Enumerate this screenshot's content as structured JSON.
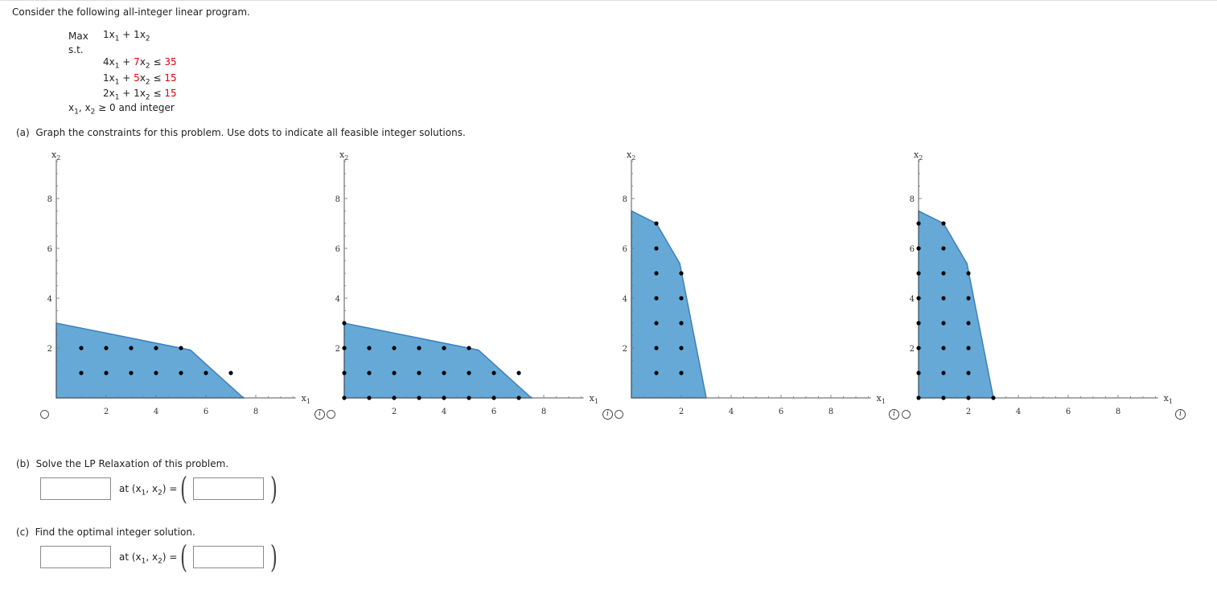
{
  "intro": "Consider the following all-integer linear program.",
  "model": {
    "max_label": "Max",
    "objective": {
      "c1": "1",
      "c2": "1"
    },
    "st_label": "s.t.",
    "constraints": [
      {
        "a1": "4",
        "a2": "7",
        "rel": "≤",
        "rhs": "35"
      },
      {
        "a1": "1",
        "a2": "5",
        "rel": "≤",
        "rhs": "15"
      },
      {
        "a1": "2",
        "a2": "1",
        "rel": "≤",
        "rhs": "15"
      }
    ],
    "nonneg": "≥ 0 and integer"
  },
  "part_a": {
    "label": "(a)",
    "text": "Graph the constraints for this problem. Use dots to indicate all feasible integer solutions."
  },
  "part_b": {
    "label": "(b)",
    "text": "Solve the LP Relaxation of this problem.",
    "objective_value": "",
    "point_value": "",
    "at_text": "at"
  },
  "part_c": {
    "label": "(c)",
    "text": "Find the optimal integer solution.",
    "objective_value": "",
    "point_value": "",
    "at_text": "at"
  },
  "info_glyph": "i",
  "chart_data": [
    {
      "type": "scatter",
      "xlabel": "x1",
      "ylabel": "x2",
      "xlim": [
        0,
        9.6
      ],
      "ylim": [
        0,
        9.6
      ],
      "x_ticks": [
        2,
        4,
        6,
        8
      ],
      "y_ticks": [
        2,
        4,
        6,
        8
      ],
      "region": [
        [
          0,
          0
        ],
        [
          0,
          3
        ],
        [
          5.38,
          1.92
        ],
        [
          7.5,
          0
        ]
      ],
      "points": [
        [
          1,
          2
        ],
        [
          2,
          2
        ],
        [
          3,
          2
        ],
        [
          4,
          2
        ],
        [
          5,
          2
        ],
        [
          1,
          1
        ],
        [
          2,
          1
        ],
        [
          3,
          1
        ],
        [
          4,
          1
        ],
        [
          5,
          1
        ],
        [
          6,
          1
        ],
        [
          7,
          1
        ]
      ]
    },
    {
      "type": "scatter",
      "xlabel": "x1",
      "ylabel": "x2",
      "xlim": [
        0,
        9.6
      ],
      "ylim": [
        0,
        9.6
      ],
      "x_ticks": [
        2,
        4,
        6,
        8
      ],
      "y_ticks": [
        2,
        4,
        6,
        8
      ],
      "region": [
        [
          0,
          0
        ],
        [
          0,
          3
        ],
        [
          5.38,
          1.92
        ],
        [
          7.5,
          0
        ]
      ],
      "points": [
        [
          0,
          3
        ],
        [
          0,
          2
        ],
        [
          1,
          2
        ],
        [
          2,
          2
        ],
        [
          3,
          2
        ],
        [
          4,
          2
        ],
        [
          5,
          2
        ],
        [
          0,
          1
        ],
        [
          1,
          1
        ],
        [
          2,
          1
        ],
        [
          3,
          1
        ],
        [
          4,
          1
        ],
        [
          5,
          1
        ],
        [
          6,
          1
        ],
        [
          7,
          1
        ],
        [
          0,
          0
        ],
        [
          1,
          0
        ],
        [
          2,
          0
        ],
        [
          3,
          0
        ],
        [
          4,
          0
        ],
        [
          5,
          0
        ],
        [
          6,
          0
        ],
        [
          7,
          0
        ]
      ]
    },
    {
      "type": "scatter",
      "xlabel": "x1",
      "ylabel": "x2",
      "xlim": [
        0,
        9.6
      ],
      "ylim": [
        0,
        9.6
      ],
      "x_ticks": [
        2,
        4,
        6,
        8
      ],
      "y_ticks": [
        2,
        4,
        6,
        8
      ],
      "region": [
        [
          0,
          0
        ],
        [
          0,
          7.5
        ],
        [
          1,
          7
        ],
        [
          1.94,
          5.39
        ],
        [
          3,
          0
        ]
      ],
      "points": [
        [
          1,
          7
        ],
        [
          1,
          6
        ],
        [
          1,
          5
        ],
        [
          2,
          5
        ],
        [
          1,
          4
        ],
        [
          2,
          4
        ],
        [
          1,
          3
        ],
        [
          2,
          3
        ],
        [
          1,
          2
        ],
        [
          2,
          2
        ],
        [
          1,
          1
        ],
        [
          2,
          1
        ]
      ]
    },
    {
      "type": "scatter",
      "xlabel": "x1",
      "ylabel": "x2",
      "xlim": [
        0,
        9.6
      ],
      "ylim": [
        0,
        9.6
      ],
      "x_ticks": [
        2,
        4,
        6,
        8
      ],
      "y_ticks": [
        2,
        4,
        6,
        8
      ],
      "region": [
        [
          0,
          0
        ],
        [
          0,
          7.5
        ],
        [
          1,
          7
        ],
        [
          1.94,
          5.39
        ],
        [
          3,
          0
        ]
      ],
      "points": [
        [
          0,
          7
        ],
        [
          1,
          7
        ],
        [
          0,
          6
        ],
        [
          1,
          6
        ],
        [
          0,
          5
        ],
        [
          1,
          5
        ],
        [
          2,
          5
        ],
        [
          0,
          4
        ],
        [
          1,
          4
        ],
        [
          2,
          4
        ],
        [
          0,
          3
        ],
        [
          1,
          3
        ],
        [
          2,
          3
        ],
        [
          0,
          2
        ],
        [
          1,
          2
        ],
        [
          2,
          2
        ],
        [
          0,
          1
        ],
        [
          1,
          1
        ],
        [
          2,
          1
        ],
        [
          0,
          0
        ],
        [
          1,
          0
        ],
        [
          2,
          0
        ],
        [
          3,
          0
        ]
      ]
    }
  ]
}
